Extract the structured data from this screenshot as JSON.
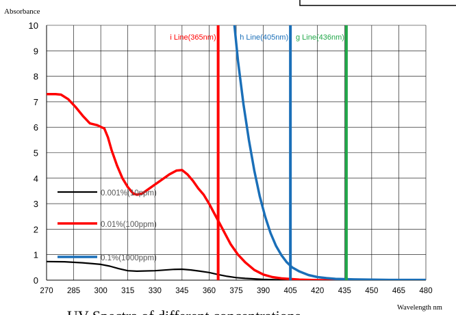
{
  "chart_data": {
    "type": "line",
    "title": "UV Spectra of different concentrations",
    "xlabel": "Wavelength nm",
    "ylabel": "Absorbance",
    "xlim": [
      270,
      480
    ],
    "ylim": [
      0,
      10
    ],
    "x_ticks": [
      270,
      285,
      300,
      315,
      330,
      345,
      360,
      375,
      390,
      405,
      420,
      435,
      450,
      465,
      480
    ],
    "y_ticks": [
      0,
      1,
      2,
      3,
      4,
      5,
      6,
      7,
      8,
      9,
      10
    ],
    "grid": "horizontal and vertical",
    "legend_position": "lower-left inside plot",
    "series": [
      {
        "name": "0.001%(10ppm)",
        "color": "#000000",
        "x": [
          270,
          280,
          290,
          300,
          305,
          310,
          315,
          320,
          330,
          340,
          345,
          350,
          355,
          360,
          365,
          370,
          375,
          380,
          390,
          400,
          420,
          480
        ],
        "y": [
          0.73,
          0.72,
          0.68,
          0.62,
          0.55,
          0.45,
          0.37,
          0.35,
          0.37,
          0.42,
          0.43,
          0.4,
          0.35,
          0.3,
          0.22,
          0.15,
          0.1,
          0.07,
          0.03,
          0.01,
          0.0,
          0.0
        ]
      },
      {
        "name": "0.01%(100ppm)",
        "color": "#ff0000",
        "x": [
          270,
          275,
          278,
          282,
          286,
          290,
          294,
          298,
          302,
          304,
          306,
          309,
          312,
          315,
          318,
          320,
          323,
          326,
          330,
          334,
          338,
          342,
          345,
          348,
          351,
          354,
          357,
          360,
          363,
          366,
          369,
          372,
          376,
          380,
          385,
          390,
          395,
          400,
          410,
          420,
          440,
          480
        ],
        "y": [
          7.3,
          7.3,
          7.28,
          7.1,
          6.8,
          6.45,
          6.15,
          6.08,
          5.95,
          5.6,
          5.1,
          4.5,
          4.0,
          3.65,
          3.4,
          3.35,
          3.4,
          3.55,
          3.75,
          3.95,
          4.15,
          4.3,
          4.32,
          4.15,
          3.9,
          3.6,
          3.35,
          3.0,
          2.6,
          2.2,
          1.8,
          1.4,
          1.0,
          0.7,
          0.4,
          0.22,
          0.12,
          0.07,
          0.02,
          0.0,
          0.0,
          0.0
        ]
      },
      {
        "name": "0.1%(1000ppm)",
        "color": "#1a6fb8",
        "x": [
          374,
          376,
          379,
          382,
          385,
          388,
          391,
          394,
          397,
          400,
          403,
          406,
          410,
          415,
          420,
          425,
          430,
          440,
          450,
          460,
          470,
          480
        ],
        "y": [
          10.0,
          8.6,
          6.9,
          5.5,
          4.3,
          3.3,
          2.5,
          1.85,
          1.35,
          0.98,
          0.7,
          0.5,
          0.34,
          0.2,
          0.12,
          0.08,
          0.05,
          0.03,
          0.02,
          0.01,
          0.01,
          0.01
        ]
      }
    ],
    "reference_lines": [
      {
        "label": "i Line(365nm)",
        "x": 365,
        "color": "#ff0000"
      },
      {
        "label": "h Line(405nm)",
        "x": 405,
        "color": "#1a6fb8"
      },
      {
        "label": "g Line(436nm)",
        "x": 436,
        "color": "#22a84a"
      }
    ]
  }
}
